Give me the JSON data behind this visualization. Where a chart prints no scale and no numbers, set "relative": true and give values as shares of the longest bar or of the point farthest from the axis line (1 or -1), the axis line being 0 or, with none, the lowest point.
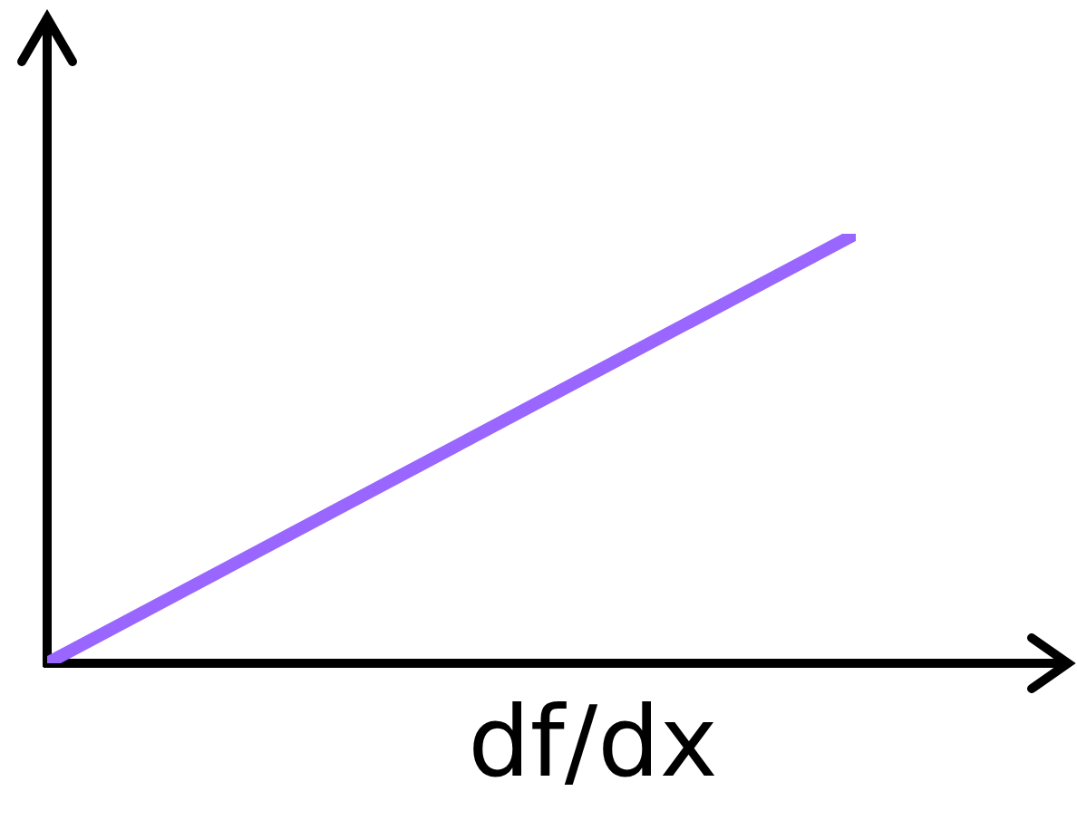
{
  "chart_data": {
    "type": "line",
    "xlabel": "df/dx",
    "categories": [
      null,
      null
    ],
    "relative": true,
    "series": [
      {
        "color": "#9966ff",
        "values": [
          0,
          1
        ]
      }
    ],
    "marker": "none",
    "line_style": "solid"
  }
}
